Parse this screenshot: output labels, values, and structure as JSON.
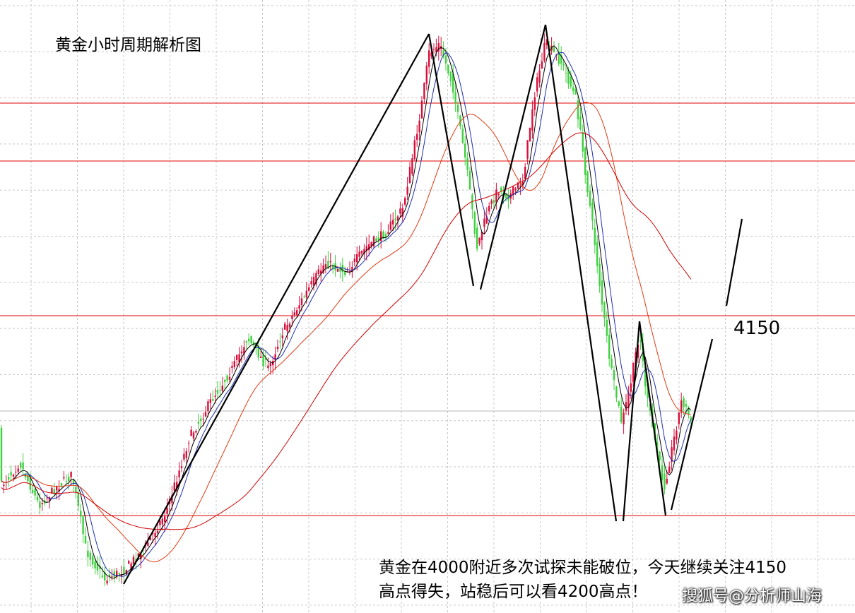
{
  "chart_data": {
    "type": "candlestick",
    "title": "黄金小时周期解析图",
    "colors": {
      "up": "#d6103c",
      "down": "#3fcf3f",
      "ma_fast": "#000000",
      "ma_mid": "#1d2fb0",
      "ma_slow": "#e03a12",
      "ma_longest": "#d00000",
      "horizontal_lines": "#e00000",
      "grid": "#c8c8c8",
      "trend_lines": "#000000"
    },
    "horizontal_levels_px_note": "",
    "level_label": "4150",
    "annotation_lines": [
      "黄金在4000附近多次试探未能破位，今天继续关注4150",
      "高点得失，站稳后可以看4200高点！"
    ],
    "watermark": "搜狐号@分析师山海",
    "grid": true
  }
}
